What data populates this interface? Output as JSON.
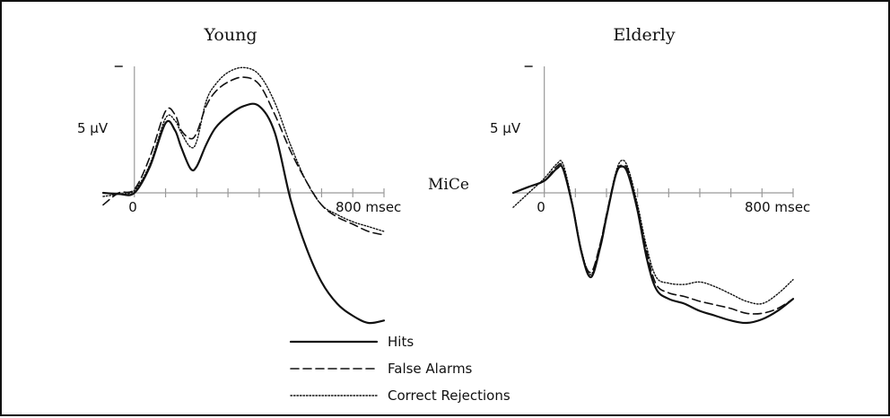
{
  "chart_data": {
    "type": "line",
    "channel_label": "MiCe",
    "y_scale_label": "5  µV",
    "x_tick_labels": {
      "zero": "0",
      "end": "800 msec"
    },
    "xlim": [
      -100,
      800
    ],
    "x_tick_interval": 100,
    "ylim_neg_up": [
      -10.5,
      12
    ],
    "polarity": "negative-up",
    "panels": [
      {
        "title": "Young",
        "series": [
          {
            "name": "Hits",
            "style": "solid",
            "x": [
              -100,
              -50,
              0,
              50,
              100,
              130,
              150,
              180,
              200,
              230,
              260,
              300,
              350,
              400,
              450,
              500,
              550,
              600,
              650,
              700,
              750,
              800
            ],
            "y": [
              0,
              0.1,
              0,
              -2.2,
              -5.8,
              -5.2,
              -3.8,
              -2.0,
              -2.2,
              -4.0,
              -5.4,
              -6.4,
              -7.2,
              -7.2,
              -5.0,
              0.5,
              4.5,
              7.4,
              9.2,
              10.2,
              10.8,
              10.6
            ]
          },
          {
            "name": "False Alarms",
            "style": "dashed",
            "x": [
              -100,
              -50,
              0,
              50,
              100,
              130,
              150,
              180,
              200,
              230,
              260,
              300,
              350,
              400,
              450,
              500,
              550,
              600,
              650,
              700,
              750,
              800
            ],
            "y": [
              1.0,
              0.0,
              -0.3,
              -3.0,
              -6.8,
              -6.5,
              -5.2,
              -4.5,
              -5.0,
              -7.2,
              -8.4,
              -9.2,
              -9.6,
              -9.0,
              -6.5,
              -3.5,
              -1.0,
              1.0,
              2.0,
              2.6,
              3.2,
              3.5
            ]
          },
          {
            "name": "Correct Rejections",
            "style": "dotted",
            "x": [
              -100,
              -50,
              0,
              50,
              100,
              130,
              150,
              180,
              200,
              230,
              260,
              300,
              350,
              400,
              450,
              500,
              550,
              600,
              650,
              700,
              750,
              800
            ],
            "y": [
              0.3,
              0.1,
              -0.2,
              -2.4,
              -6.2,
              -6.0,
              -5.0,
              -3.8,
              -4.3,
              -7.6,
              -9.0,
              -10.0,
              -10.4,
              -9.8,
              -7.5,
              -4.0,
              -1.0,
              1.0,
              1.8,
              2.4,
              2.8,
              3.2
            ]
          }
        ]
      },
      {
        "title": "Elderly",
        "series": [
          {
            "name": "Hits",
            "style": "solid",
            "x": [
              -100,
              -50,
              0,
              40,
              60,
              90,
              120,
              150,
              180,
              200,
              230,
              250,
              270,
              300,
              330,
              360,
              400,
              450,
              500,
              550,
              600,
              650,
              700,
              750,
              800
            ],
            "y": [
              0,
              -0.5,
              -1.0,
              -2.0,
              -2.0,
              1.0,
              5.0,
              7.0,
              4.5,
              2.0,
              -1.5,
              -2.2,
              -1.5,
              1.5,
              5.5,
              8.0,
              8.8,
              9.2,
              9.8,
              10.2,
              10.6,
              10.8,
              10.5,
              9.8,
              8.8
            ]
          },
          {
            "name": "False Alarms",
            "style": "dashed",
            "x": [
              -100,
              -50,
              0,
              40,
              60,
              90,
              120,
              150,
              180,
              200,
              230,
              250,
              270,
              300,
              330,
              360,
              400,
              450,
              500,
              550,
              600,
              650,
              700,
              750,
              800
            ],
            "y": [
              0,
              -0.5,
              -1.0,
              -2.2,
              -2.1,
              1.0,
              5.0,
              6.6,
              4.2,
              1.8,
              -1.6,
              -2.3,
              -1.8,
              1.3,
              5.0,
              7.6,
              8.3,
              8.6,
              9.0,
              9.3,
              9.6,
              10.0,
              10.0,
              9.6,
              8.8
            ]
          },
          {
            "name": "Correct Rejections",
            "style": "dotted",
            "x": [
              -100,
              -50,
              0,
              40,
              60,
              90,
              120,
              150,
              180,
              200,
              230,
              250,
              270,
              300,
              330,
              360,
              400,
              450,
              500,
              550,
              600,
              650,
              700,
              750,
              800
            ],
            "y": [
              1.2,
              0.0,
              -1.2,
              -2.4,
              -2.4,
              0.8,
              4.8,
              6.8,
              4.2,
              1.8,
              -1.7,
              -2.7,
              -2.0,
              1.0,
              4.6,
              7.0,
              7.5,
              7.6,
              7.4,
              7.8,
              8.4,
              9.0,
              9.2,
              8.4,
              7.2
            ]
          }
        ]
      }
    ],
    "legend": [
      {
        "label": "Hits",
        "style": "solid"
      },
      {
        "label": "False Alarms",
        "style": "dashed"
      },
      {
        "label": "Correct Rejections",
        "style": "dotted"
      }
    ]
  }
}
